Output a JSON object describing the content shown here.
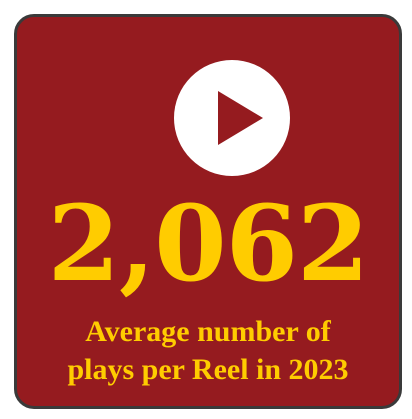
{
  "stat": {
    "value": "2,062",
    "caption_line1": "Average number of",
    "caption_line2": "plays per Reel in 2023"
  },
  "icon": "play-icon",
  "colors": {
    "card_background": "#951b1f",
    "card_border": "#3a3a3a",
    "accent_text": "#ffcc00",
    "icon_circle": "#ffffff",
    "icon_triangle": "#951b1f"
  }
}
